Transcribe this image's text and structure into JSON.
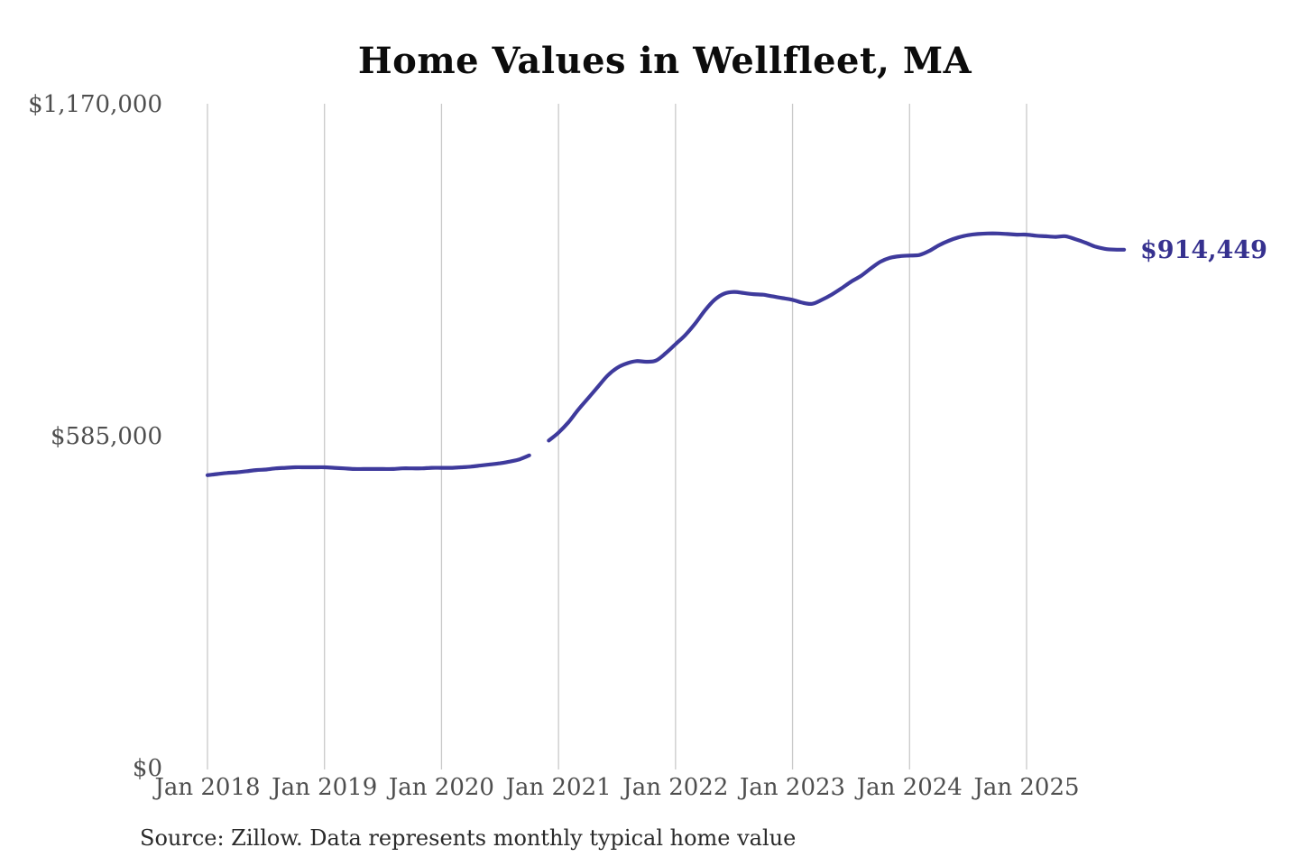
{
  "title": "Home Values in Wellfleet, MA",
  "end_label": "$914,449",
  "source_note": "Source: Zillow. Data represents monthly typical home value",
  "colors": {
    "background": "#ffffff",
    "line": "#3e3a9c",
    "end_label": "#36318f",
    "gridline": "#c9c9c9",
    "axis_label": "#4e4e4e",
    "title": "#0c0c0c",
    "source": "#2a2a2a"
  },
  "chart_data": {
    "type": "line",
    "title": "Home Values in Wellfleet, MA",
    "xlabel": "",
    "ylabel": "",
    "unit": "USD",
    "frequency": "monthly",
    "start_month": "Jan 2018",
    "end_month": "Nov 2025",
    "x_tick_labels": [
      "Jan 2018",
      "Jan 2019",
      "Jan 2020",
      "Jan 2021",
      "Jan 2022",
      "Jan 2023",
      "Jan 2024",
      "Jan 2025"
    ],
    "y_ticks": [
      0,
      585000,
      1170000
    ],
    "y_tick_labels": [
      "$0",
      "$585,000",
      "$1,170,000"
    ],
    "ylim": [
      0,
      1170000
    ],
    "grid": "vertical-only",
    "legend": "none",
    "gap_note": "one-month data gap at Nov 2020",
    "final_value": 914449,
    "values": [
      517000,
      519000,
      521000,
      522000,
      524000,
      526000,
      527000,
      529000,
      530000,
      531000,
      531000,
      531000,
      531000,
      530000,
      529000,
      528000,
      528000,
      528000,
      528000,
      528000,
      529000,
      529000,
      529000,
      530000,
      530000,
      530000,
      531000,
      532000,
      534000,
      536000,
      538000,
      541000,
      545000,
      552000,
      null,
      578000,
      592000,
      610000,
      632000,
      652000,
      672000,
      692000,
      706000,
      714000,
      718000,
      717000,
      719000,
      732000,
      748000,
      764000,
      784000,
      807000,
      826000,
      837000,
      840000,
      838000,
      836000,
      835000,
      832000,
      829000,
      826000,
      821000,
      819000,
      826000,
      835000,
      846000,
      858000,
      868000,
      881000,
      893000,
      900000,
      903000,
      904000,
      905000,
      912000,
      922000,
      930000,
      936000,
      940000,
      942000,
      943000,
      943000,
      942000,
      941000,
      941000,
      939000,
      938000,
      937000,
      938000,
      933000,
      927000,
      920000,
      916000,
      914500,
      914449
    ]
  }
}
